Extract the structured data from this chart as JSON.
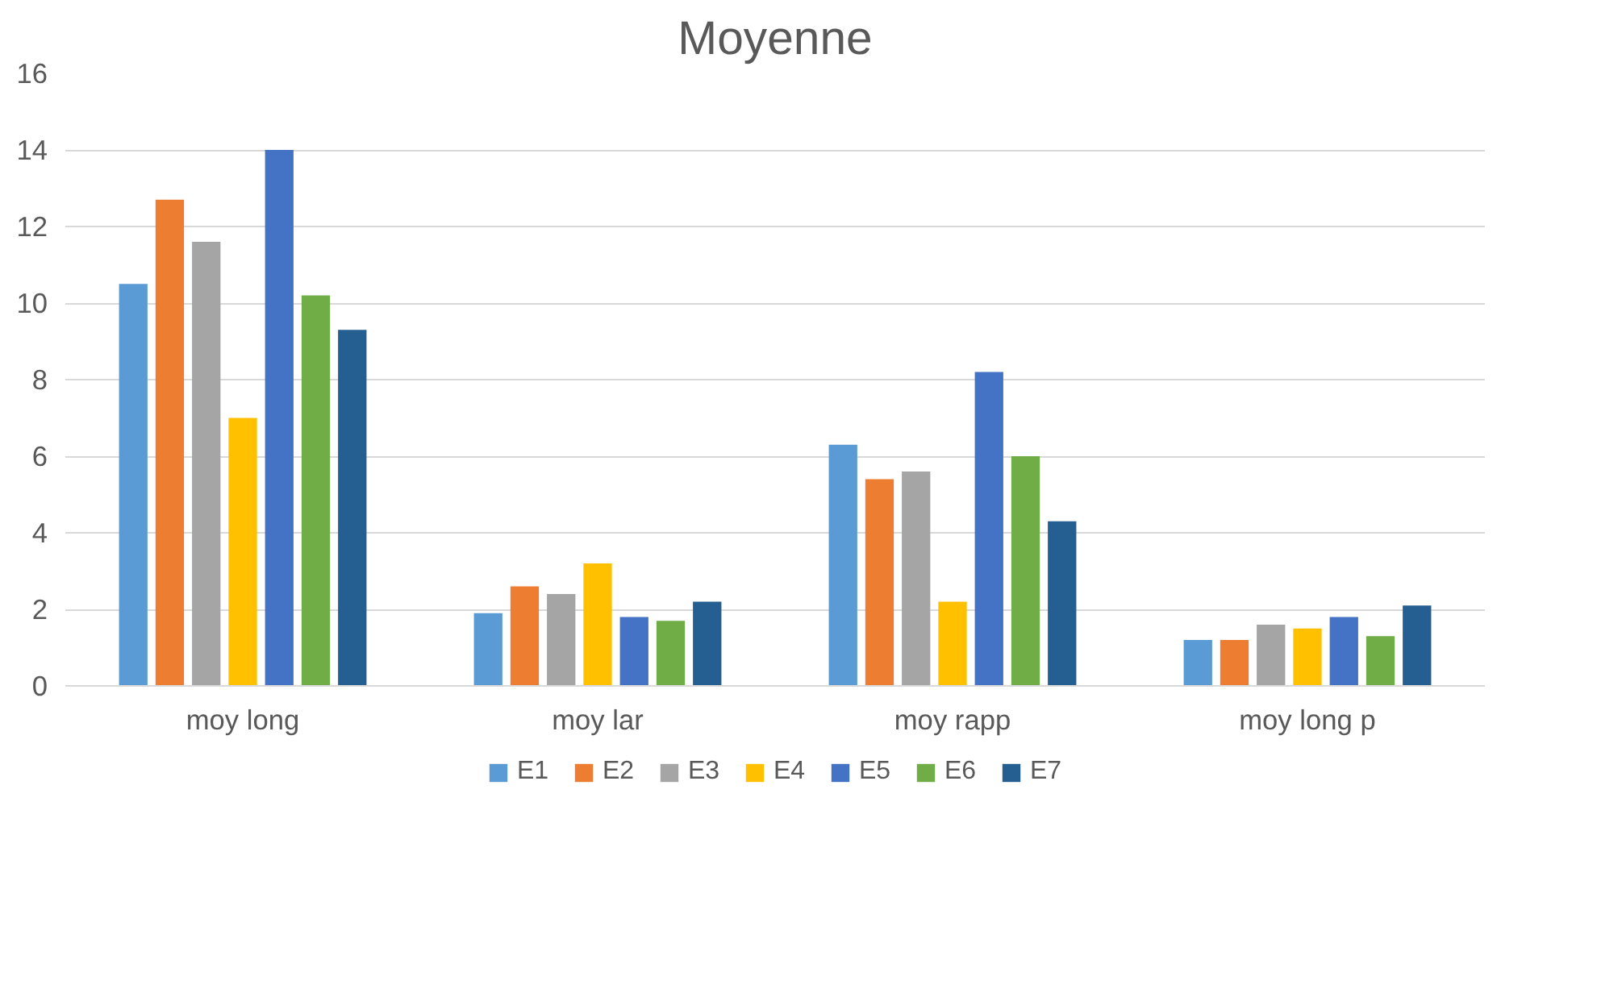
{
  "chart_data": {
    "type": "bar",
    "title": "Moyenne",
    "categories": [
      "moy long",
      "moy lar",
      "moy rapp",
      "moy long p"
    ],
    "series": [
      {
        "name": "E1",
        "color": "#5b9bd5",
        "values": [
          10.5,
          1.9,
          6.3,
          1.2
        ]
      },
      {
        "name": "E2",
        "color": "#ed7d31",
        "values": [
          12.7,
          2.6,
          5.4,
          1.2
        ]
      },
      {
        "name": "E3",
        "color": "#a5a5a5",
        "values": [
          11.6,
          2.4,
          5.6,
          1.6
        ]
      },
      {
        "name": "E4",
        "color": "#ffc000",
        "values": [
          7.0,
          3.2,
          2.2,
          1.5
        ]
      },
      {
        "name": "E5",
        "color": "#4472c4",
        "values": [
          14.0,
          1.8,
          8.2,
          1.8
        ]
      },
      {
        "name": "E6",
        "color": "#70ad47",
        "values": [
          10.2,
          1.7,
          6.0,
          1.3
        ]
      },
      {
        "name": "E7",
        "color": "#255e91",
        "values": [
          9.3,
          2.2,
          4.3,
          2.1
        ]
      }
    ],
    "ylim": [
      0,
      16
    ],
    "yticks": [
      0,
      2,
      4,
      6,
      8,
      10,
      12,
      14,
      16
    ],
    "grid": "y",
    "legend": "bottom"
  }
}
